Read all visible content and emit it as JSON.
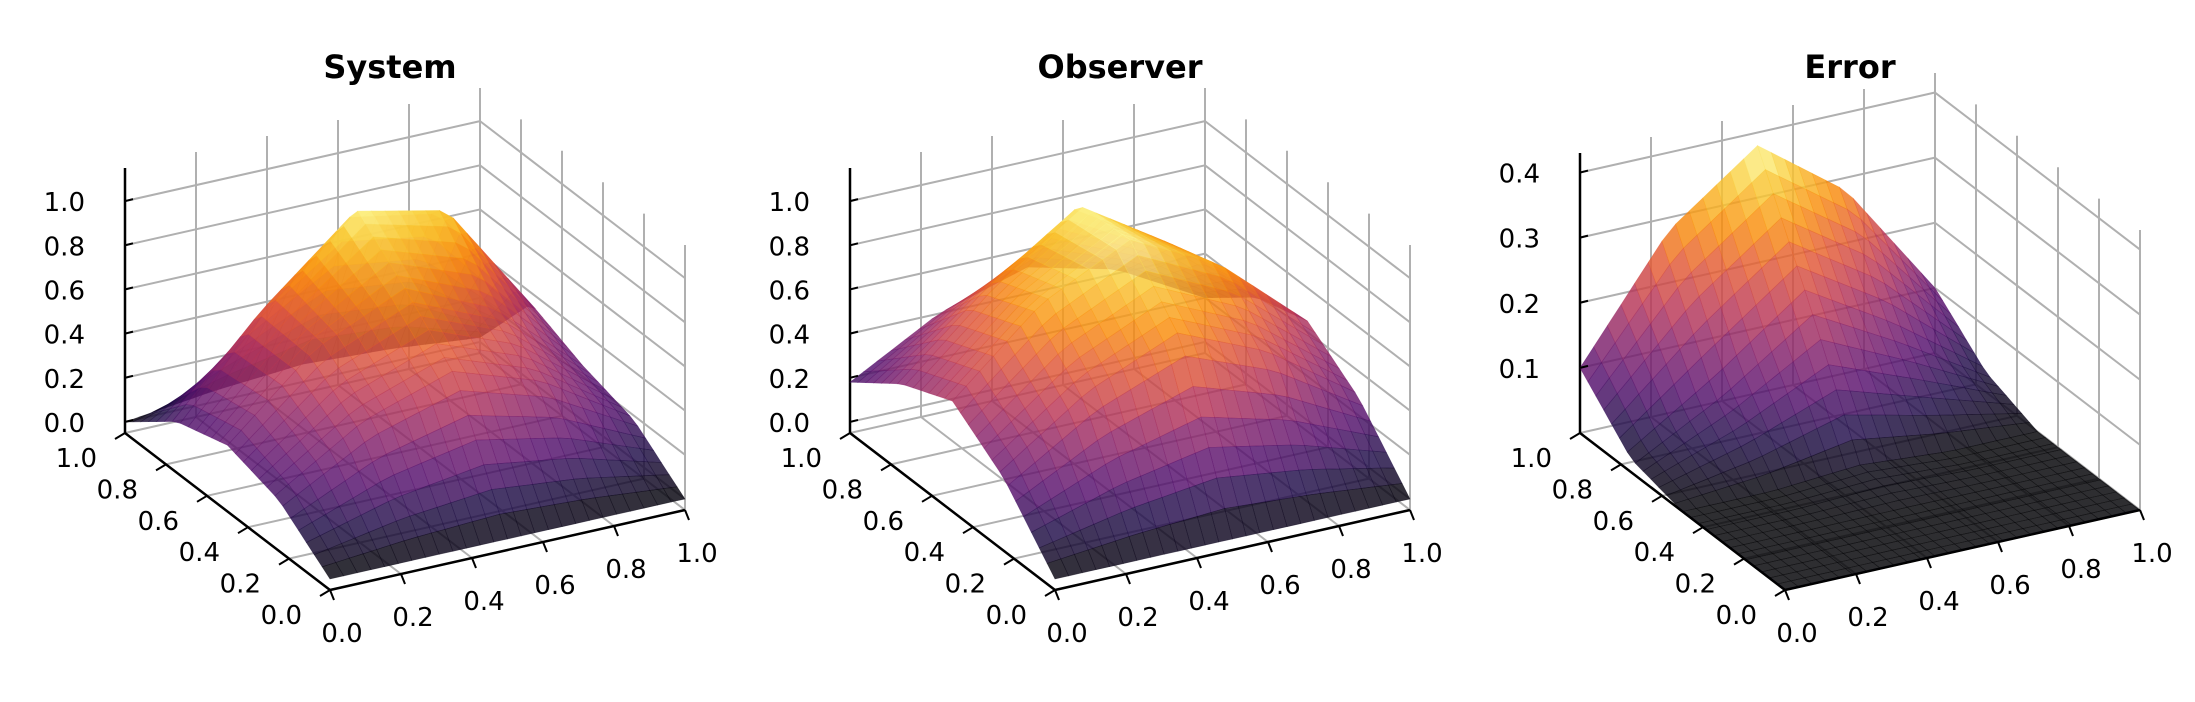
{
  "chart_data": [
    {
      "type": "surface3d",
      "title": "System",
      "xlabel": "",
      "ylabel": "",
      "zlabel": "",
      "xlim": [
        0,
        1
      ],
      "ylim": [
        0,
        1
      ],
      "zlim": [
        -0.05,
        1.15
      ],
      "x_ticks": [
        "0.0",
        "0.2",
        "0.4",
        "0.6",
        "0.8",
        "1.0"
      ],
      "y_ticks": [
        "0.0",
        "0.2",
        "0.4",
        "0.6",
        "0.8",
        "1.0"
      ],
      "z_ticks": [
        "0.0",
        "0.2",
        "0.4",
        "0.6",
        "0.8",
        "1.0"
      ],
      "surface": {
        "x": [
          0,
          0.25,
          0.5,
          0.75,
          1
        ],
        "y": [
          0,
          0.25,
          0.5,
          0.75,
          1
        ],
        "z": [
          [
            0,
            0,
            0,
            0,
            0
          ],
          [
            0.18,
            0.42,
            0.55,
            0.42,
            0.18
          ],
          [
            0.25,
            0.6,
            0.78,
            0.6,
            0.25
          ],
          [
            0.18,
            0.62,
            0.98,
            0.9,
            0.35
          ],
          [
            0,
            0.05,
            0.08,
            0.06,
            0.02
          ]
        ]
      },
      "colormap": "inferno",
      "grid": true
    },
    {
      "type": "surface3d",
      "title": "Observer",
      "xlabel": "",
      "ylabel": "",
      "zlabel": "",
      "xlim": [
        0,
        1
      ],
      "ylim": [
        0,
        1
      ],
      "zlim": [
        -0.05,
        1.15
      ],
      "x_ticks": [
        "0.0",
        "0.2",
        "0.4",
        "0.6",
        "0.8",
        "1.0"
      ],
      "y_ticks": [
        "0.0",
        "0.2",
        "0.4",
        "0.6",
        "0.8",
        "1.0"
      ],
      "z_ticks": [
        "0.0",
        "0.2",
        "0.4",
        "0.6",
        "0.8",
        "1.0"
      ],
      "surface": {
        "x": [
          0,
          0.25,
          0.5,
          0.75,
          1
        ],
        "y": [
          0,
          0.25,
          0.5,
          0.75,
          1
        ],
        "z": [
          [
            0,
            0,
            0,
            0,
            0
          ],
          [
            0.28,
            0.55,
            0.72,
            0.55,
            0.28
          ],
          [
            0.45,
            0.8,
            1.0,
            0.8,
            0.45
          ],
          [
            0.35,
            0.7,
            0.98,
            0.72,
            0.38
          ],
          [
            0.18,
            0.4,
            0.52,
            0.42,
            0.2
          ]
        ]
      },
      "colormap": "inferno",
      "grid": true
    },
    {
      "type": "surface3d",
      "title": "Error",
      "xlabel": "",
      "ylabel": "",
      "zlabel": "",
      "xlim": [
        0,
        1
      ],
      "ylim": [
        0,
        1
      ],
      "zlim": [
        0,
        0.43
      ],
      "x_ticks": [
        "0.0",
        "0.2",
        "0.4",
        "0.6",
        "0.8",
        "1.0"
      ],
      "y_ticks": [
        "0.0",
        "0.2",
        "0.4",
        "0.6",
        "0.8",
        "1.0"
      ],
      "z_ticks": [
        "0.1",
        "0.2",
        "0.3",
        "0.4"
      ],
      "surface": {
        "x": [
          0,
          0.25,
          0.5,
          0.75,
          1
        ],
        "y": [
          0,
          0.25,
          0.5,
          0.75,
          1
        ],
        "z": [
          [
            0,
            0,
            0,
            0,
            0
          ],
          [
            0,
            0,
            0,
            0,
            0
          ],
          [
            0,
            0,
            0.01,
            0,
            0
          ],
          [
            0.02,
            0.1,
            0.2,
            0.12,
            0.03
          ],
          [
            0.1,
            0.28,
            0.38,
            0.28,
            0.1
          ]
        ]
      },
      "colormap": "inferno",
      "grid": true
    }
  ]
}
